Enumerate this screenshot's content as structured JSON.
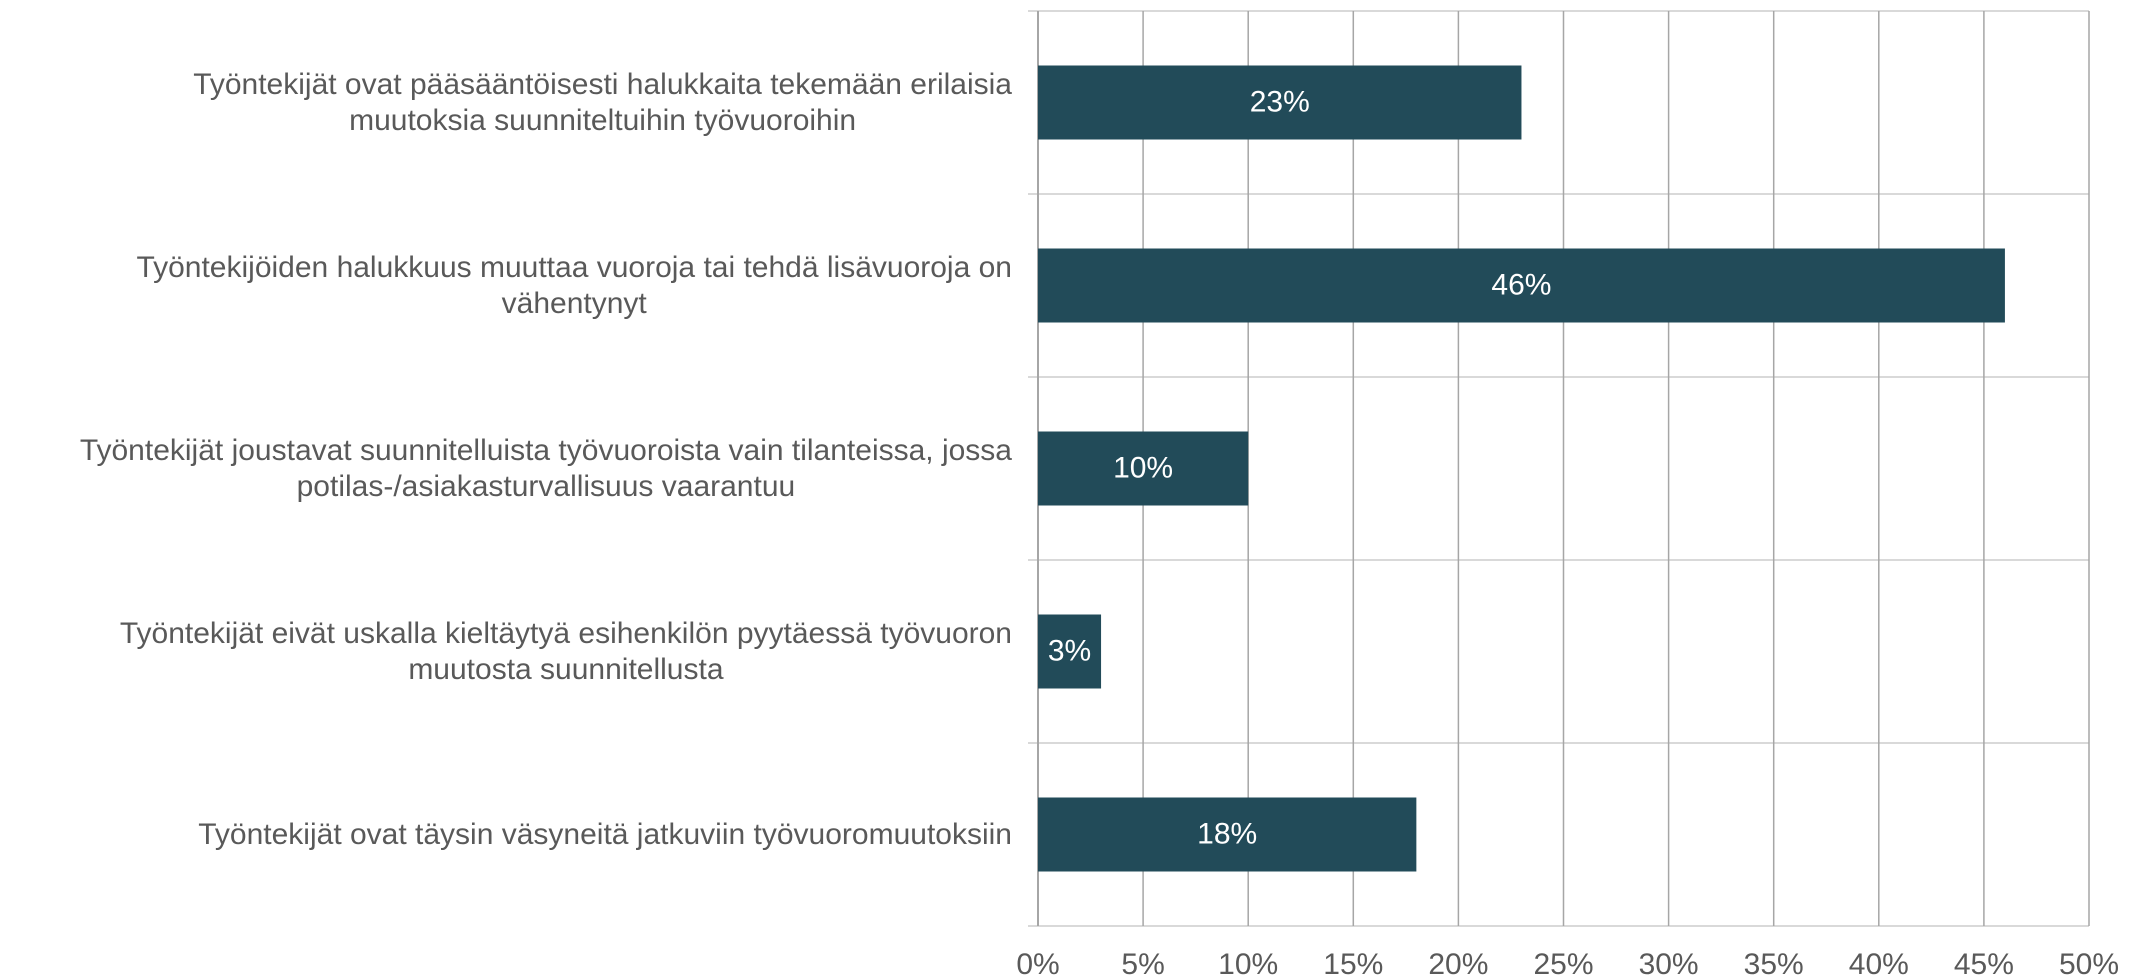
{
  "chart_data": {
    "type": "barh",
    "categories": [
      "Työntekijät ovat pääsääntöisesti halukkaita tekemään erilaisia\nmuutoksia suunniteltuihin työvuoroihin",
      "Työntekijöiden halukkuus muuttaa vuoroja tai tehdä lisävuoroja on\nvähentynyt",
      "Työntekijät joustavat suunnitelluista työvuoroista vain tilanteissa, jossa\npotilas-/asiakasturvallisuus vaarantuu",
      "Työntekijät eivät uskalla kieltäytyä esihenkilön pyytäessä työvuoron\nmuutosta suunnitellusta",
      "Työntekijät ovat täysin väsyneitä jatkuviin työvuoromuutoksiin"
    ],
    "values": [
      23,
      46,
      10,
      3,
      18
    ],
    "value_labels": [
      "23%",
      "46%",
      "10%",
      "3%",
      "18%"
    ],
    "color": "#224b59",
    "xlim": [
      0,
      50
    ],
    "xticks": [
      {
        "value": 0,
        "label": "0%"
      },
      {
        "value": 5,
        "label": "5%"
      },
      {
        "value": 10,
        "label": "10%"
      },
      {
        "value": 15,
        "label": "15%"
      },
      {
        "value": 20,
        "label": "20%"
      },
      {
        "value": 25,
        "label": "25%"
      },
      {
        "value": 30,
        "label": "30%"
      },
      {
        "value": 35,
        "label": "35%"
      },
      {
        "value": 40,
        "label": "40%"
      },
      {
        "value": 45,
        "label": "45%"
      },
      {
        "value": 50,
        "label": "50%"
      }
    ],
    "grid": true
  }
}
